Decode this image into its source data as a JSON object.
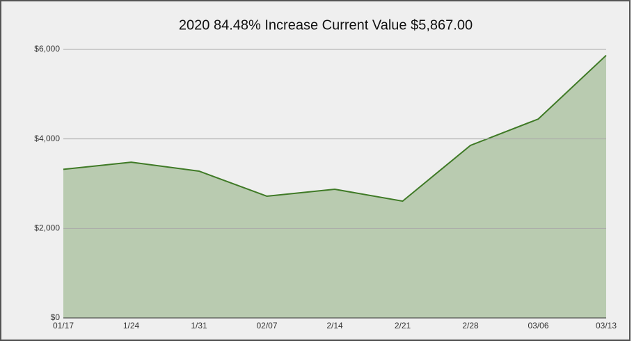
{
  "chart_data": {
    "type": "area",
    "title": "2020 84.48% Increase Current Value $5,867.00",
    "categories": [
      "01/17",
      "1/24",
      "1/31",
      "02/07",
      "2/14",
      "2/21",
      "2/28",
      "03/06",
      "03/13"
    ],
    "series": [
      {
        "color": "#3f7a26",
        "values": [
          3320,
          3480,
          3280,
          2720,
          2875,
          2610,
          3855,
          4445,
          5867
        ]
      }
    ],
    "fill": "#b9cbb0",
    "ylim": [
      0,
      6000
    ],
    "yticks": [
      {
        "value": 0,
        "label": "$0"
      },
      {
        "value": 2000,
        "label": "$2,000"
      },
      {
        "value": 4000,
        "label": "$4,000"
      },
      {
        "value": 6000,
        "label": "$6,000"
      }
    ],
    "grid": true
  }
}
